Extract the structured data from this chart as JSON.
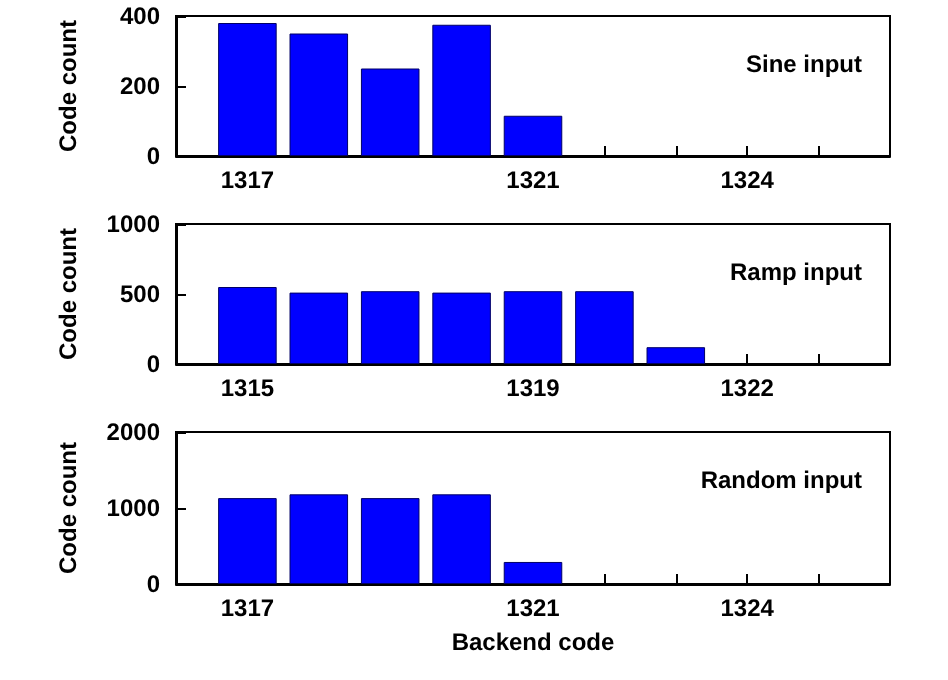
{
  "chart_data": [
    {
      "type": "bar",
      "annotations": [
        "Sine input"
      ],
      "ylabel": "Code count",
      "x": [
        1317,
        1318,
        1319,
        1320,
        1321
      ],
      "values": [
        380,
        350,
        250,
        375,
        115
      ],
      "color": "#0000ff",
      "xlim": [
        1316,
        1326
      ],
      "xticks": [
        1317,
        {
          "value": 1318,
          "label": null
        },
        {
          "value": 1319,
          "label": null
        },
        {
          "value": 1320,
          "label": null
        },
        1321,
        {
          "value": 1322,
          "label": null
        },
        {
          "value": 1323,
          "label": null
        },
        1324,
        {
          "value": 1325,
          "label": null
        }
      ],
      "ylim": [
        0,
        400
      ],
      "yticks": [
        0,
        200,
        400
      ]
    },
    {
      "type": "bar",
      "annotations": [
        "Ramp input"
      ],
      "ylabel": "Code count",
      "x": [
        1315,
        1316,
        1317,
        1318,
        1319,
        1320,
        1321
      ],
      "values": [
        550,
        510,
        520,
        510,
        520,
        520,
        120
      ],
      "color": "#0000ff",
      "xlim": [
        1314,
        1324
      ],
      "xticks": [
        1315,
        {
          "value": 1316,
          "label": null
        },
        {
          "value": 1317,
          "label": null
        },
        {
          "value": 1318,
          "label": null
        },
        1319,
        {
          "value": 1320,
          "label": null
        },
        {
          "value": 1321,
          "label": null
        },
        1322,
        {
          "value": 1323,
          "label": null
        }
      ],
      "ylim": [
        0,
        1000
      ],
      "yticks": [
        0,
        500,
        1000
      ]
    },
    {
      "type": "bar",
      "annotations": [
        "Random input"
      ],
      "xlabel": "Backend code",
      "ylabel": "Code count",
      "x": [
        1317,
        1318,
        1319,
        1320,
        1321
      ],
      "values": [
        1130,
        1180,
        1130,
        1180,
        290
      ],
      "color": "#0000ff",
      "xlim": [
        1316,
        1326
      ],
      "xticks": [
        1317,
        {
          "value": 1318,
          "label": null
        },
        {
          "value": 1319,
          "label": null
        },
        {
          "value": 1320,
          "label": null
        },
        1321,
        {
          "value": 1322,
          "label": null
        },
        {
          "value": 1323,
          "label": null
        },
        1324,
        {
          "value": 1325,
          "label": null
        }
      ],
      "ylim": [
        0,
        2000
      ],
      "yticks": [
        0,
        1000,
        2000
      ]
    }
  ]
}
